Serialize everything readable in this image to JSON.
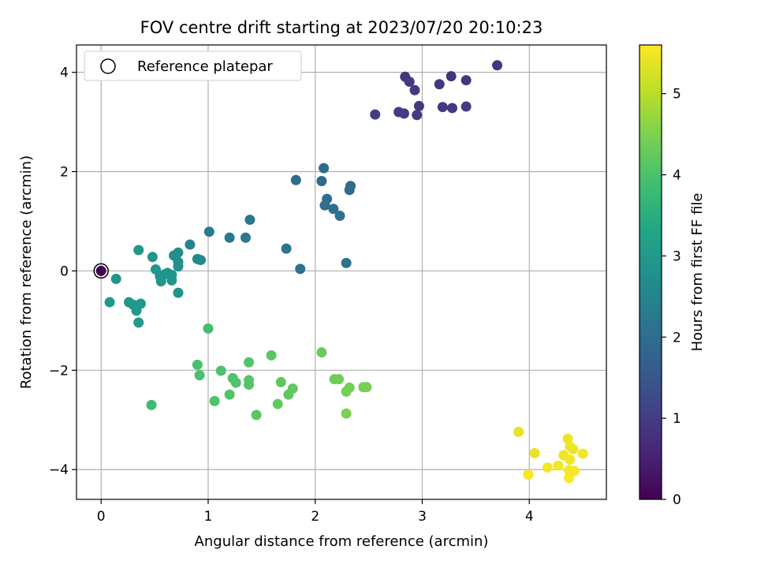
{
  "chart_data": {
    "type": "scatter",
    "title": "FOV centre drift starting at 2023/07/20 20:10:23",
    "xlabel": "Angular distance from reference (arcmin)",
    "ylabel": "Rotation from reference (arcmin)",
    "xlim": [
      -0.23,
      4.72
    ],
    "ylim": [
      -4.6,
      4.55
    ],
    "xticks": [
      0,
      1,
      2,
      3,
      4
    ],
    "yticks": [
      -4,
      -2,
      0,
      2,
      4
    ],
    "grid": true,
    "legend": {
      "position": "top-left",
      "entries": [
        "Reference platepar"
      ]
    },
    "reference_point": {
      "x": 0,
      "y": 0
    },
    "colorbar": {
      "label": "Hours from first FF file",
      "colormap": "viridis",
      "range": [
        0,
        5.6
      ],
      "ticks": [
        0,
        1,
        2,
        3,
        4,
        5
      ]
    },
    "points": [
      {
        "x": 0.0,
        "y": 0.0,
        "c": 0.0
      },
      {
        "x": 3.7,
        "y": 4.14,
        "c": 0.85
      },
      {
        "x": 3.27,
        "y": 3.92,
        "c": 0.86
      },
      {
        "x": 3.41,
        "y": 3.84,
        "c": 0.87
      },
      {
        "x": 3.16,
        "y": 3.76,
        "c": 0.88
      },
      {
        "x": 2.84,
        "y": 3.91,
        "c": 0.9
      },
      {
        "x": 2.88,
        "y": 3.81,
        "c": 0.91
      },
      {
        "x": 2.93,
        "y": 3.64,
        "c": 0.92
      },
      {
        "x": 2.97,
        "y": 3.32,
        "c": 0.93
      },
      {
        "x": 3.19,
        "y": 3.3,
        "c": 0.94
      },
      {
        "x": 3.28,
        "y": 3.28,
        "c": 0.95
      },
      {
        "x": 3.41,
        "y": 3.31,
        "c": 0.96
      },
      {
        "x": 2.78,
        "y": 3.2,
        "c": 0.98
      },
      {
        "x": 2.83,
        "y": 3.17,
        "c": 0.99
      },
      {
        "x": 2.95,
        "y": 3.14,
        "c": 1.0
      },
      {
        "x": 2.56,
        "y": 3.15,
        "c": 1.02
      },
      {
        "x": 2.08,
        "y": 2.07,
        "c": 1.9
      },
      {
        "x": 2.06,
        "y": 1.81,
        "c": 1.92
      },
      {
        "x": 1.82,
        "y": 1.83,
        "c": 1.94
      },
      {
        "x": 2.33,
        "y": 1.71,
        "c": 1.96
      },
      {
        "x": 2.32,
        "y": 1.63,
        "c": 1.98
      },
      {
        "x": 2.11,
        "y": 1.45,
        "c": 2.0
      },
      {
        "x": 2.09,
        "y": 1.32,
        "c": 2.02
      },
      {
        "x": 2.17,
        "y": 1.25,
        "c": 2.04
      },
      {
        "x": 2.23,
        "y": 1.11,
        "c": 2.06
      },
      {
        "x": 2.29,
        "y": 0.16,
        "c": 2.1
      },
      {
        "x": 1.86,
        "y": 0.04,
        "c": 2.12
      },
      {
        "x": 1.73,
        "y": 0.45,
        "c": 2.14
      },
      {
        "x": 1.39,
        "y": 1.03,
        "c": 2.2
      },
      {
        "x": 1.35,
        "y": 0.67,
        "c": 2.22
      },
      {
        "x": 1.2,
        "y": 0.67,
        "c": 2.25
      },
      {
        "x": 1.01,
        "y": 0.79,
        "c": 2.3
      },
      {
        "x": 0.83,
        "y": 0.53,
        "c": 2.5
      },
      {
        "x": 0.9,
        "y": 0.24,
        "c": 2.6
      },
      {
        "x": 0.93,
        "y": 0.22,
        "c": 2.65
      },
      {
        "x": 0.72,
        "y": 0.37,
        "c": 2.7
      },
      {
        "x": 0.68,
        "y": 0.31,
        "c": 2.75
      },
      {
        "x": 0.72,
        "y": 0.18,
        "c": 2.78
      },
      {
        "x": 0.72,
        "y": 0.09,
        "c": 2.8
      },
      {
        "x": 0.72,
        "y": -0.44,
        "c": 2.82
      },
      {
        "x": 0.66,
        "y": -0.08,
        "c": 2.85
      },
      {
        "x": 0.62,
        "y": -0.04,
        "c": 2.86
      },
      {
        "x": 0.59,
        "y": -0.07,
        "c": 2.87
      },
      {
        "x": 0.55,
        "y": -0.11,
        "c": 2.88
      },
      {
        "x": 0.56,
        "y": -0.21,
        "c": 2.89
      },
      {
        "x": 0.66,
        "y": -0.19,
        "c": 2.9
      },
      {
        "x": 0.51,
        "y": 0.03,
        "c": 2.91
      },
      {
        "x": 0.48,
        "y": 0.28,
        "c": 2.92
      },
      {
        "x": 0.35,
        "y": 0.42,
        "c": 2.93
      },
      {
        "x": 0.14,
        "y": -0.16,
        "c": 2.95
      },
      {
        "x": 0.08,
        "y": -0.63,
        "c": 2.96
      },
      {
        "x": 0.26,
        "y": -0.63,
        "c": 2.97
      },
      {
        "x": 0.3,
        "y": -0.68,
        "c": 2.98
      },
      {
        "x": 0.37,
        "y": -0.66,
        "c": 2.99
      },
      {
        "x": 0.33,
        "y": -0.8,
        "c": 3.0
      },
      {
        "x": 0.35,
        "y": -1.04,
        "c": 3.01
      },
      {
        "x": 1.0,
        "y": -1.16,
        "c": 3.9
      },
      {
        "x": 0.9,
        "y": -1.89,
        "c": 3.95
      },
      {
        "x": 0.92,
        "y": -2.1,
        "c": 3.97
      },
      {
        "x": 1.12,
        "y": -2.01,
        "c": 4.0
      },
      {
        "x": 1.23,
        "y": -2.16,
        "c": 4.02
      },
      {
        "x": 1.26,
        "y": -2.25,
        "c": 4.03
      },
      {
        "x": 1.06,
        "y": -2.62,
        "c": 4.05
      },
      {
        "x": 1.2,
        "y": -2.49,
        "c": 4.06
      },
      {
        "x": 1.38,
        "y": -1.84,
        "c": 4.08
      },
      {
        "x": 1.38,
        "y": -2.2,
        "c": 4.1
      },
      {
        "x": 1.38,
        "y": -2.29,
        "c": 4.12
      },
      {
        "x": 1.45,
        "y": -2.9,
        "c": 4.14
      },
      {
        "x": 1.59,
        "y": -1.7,
        "c": 4.16
      },
      {
        "x": 1.68,
        "y": -2.24,
        "c": 4.18
      },
      {
        "x": 1.79,
        "y": -2.37,
        "c": 4.2
      },
      {
        "x": 1.75,
        "y": -2.49,
        "c": 4.21
      },
      {
        "x": 1.65,
        "y": -2.68,
        "c": 4.22
      },
      {
        "x": 2.06,
        "y": -1.64,
        "c": 4.3
      },
      {
        "x": 2.18,
        "y": -2.18,
        "c": 4.35
      },
      {
        "x": 2.22,
        "y": -2.18,
        "c": 4.37
      },
      {
        "x": 2.32,
        "y": -2.35,
        "c": 4.39
      },
      {
        "x": 2.29,
        "y": -2.43,
        "c": 4.41
      },
      {
        "x": 2.45,
        "y": -2.34,
        "c": 4.43
      },
      {
        "x": 2.48,
        "y": -2.34,
        "c": 4.45
      },
      {
        "x": 2.29,
        "y": -2.87,
        "c": 4.47
      },
      {
        "x": 0.47,
        "y": -2.7,
        "c": 3.85
      },
      {
        "x": 3.9,
        "y": -3.24,
        "c": 5.4
      },
      {
        "x": 4.05,
        "y": -3.67,
        "c": 5.42
      },
      {
        "x": 4.36,
        "y": -3.38,
        "c": 5.45
      },
      {
        "x": 4.38,
        "y": -3.54,
        "c": 5.47
      },
      {
        "x": 4.41,
        "y": -3.59,
        "c": 5.48
      },
      {
        "x": 4.32,
        "y": -3.71,
        "c": 5.49
      },
      {
        "x": 4.5,
        "y": -3.68,
        "c": 5.5
      },
      {
        "x": 4.38,
        "y": -3.8,
        "c": 5.51
      },
      {
        "x": 4.27,
        "y": -3.92,
        "c": 5.52
      },
      {
        "x": 4.17,
        "y": -3.96,
        "c": 5.53
      },
      {
        "x": 4.37,
        "y": -4.01,
        "c": 5.54
      },
      {
        "x": 4.42,
        "y": -4.03,
        "c": 5.55
      },
      {
        "x": 3.99,
        "y": -4.1,
        "c": 5.56
      },
      {
        "x": 4.37,
        "y": -4.17,
        "c": 5.57
      }
    ]
  }
}
